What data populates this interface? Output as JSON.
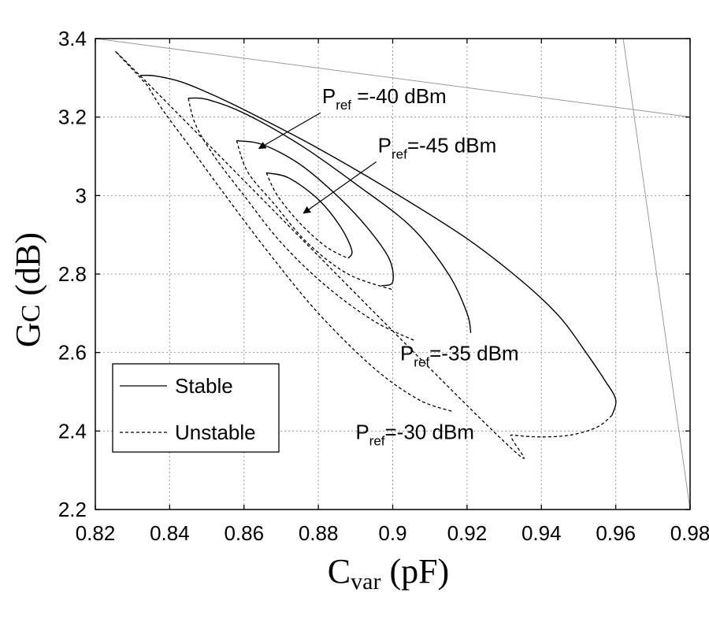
{
  "chart_data": {
    "type": "line",
    "xlabel": {
      "main": "C",
      "sub": "var",
      "units": " (pF)"
    },
    "ylabel": {
      "main": "G",
      "sub": "C",
      "units": " (dB)"
    },
    "xlim": [
      0.82,
      0.98
    ],
    "ylim": [
      2.2,
      3.4
    ],
    "xticks": [
      "0.82",
      "0.84",
      "0.86",
      "0.88",
      "0.9",
      "0.92",
      "0.94",
      "0.96",
      "0.98"
    ],
    "yticks": [
      "2.2",
      "2.4",
      "2.6",
      "2.8",
      "3",
      "3.2",
      "3.4"
    ],
    "grid": true,
    "legend": {
      "position": "bottom-left",
      "entries": [
        {
          "label": "Stable",
          "style": "solid"
        },
        {
          "label": "Unstable",
          "style": "dashed"
        }
      ]
    },
    "series": [
      {
        "name": "Pref=-30 dBm",
        "stable": [
          [
            0.832,
            3.306
          ],
          [
            0.836,
            3.305
          ],
          [
            0.843,
            3.29
          ],
          [
            0.852,
            3.255
          ],
          [
            0.865,
            3.195
          ],
          [
            0.88,
            3.12
          ],
          [
            0.9,
            3.01
          ],
          [
            0.92,
            2.89
          ],
          [
            0.935,
            2.78
          ],
          [
            0.945,
            2.69
          ],
          [
            0.952,
            2.6
          ],
          [
            0.957,
            2.53
          ],
          [
            0.96,
            2.48
          ],
          [
            0.959,
            2.44
          ]
        ],
        "unstable": [
          [
            0.959,
            2.44
          ],
          [
            0.955,
            2.41
          ],
          [
            0.948,
            2.39
          ],
          [
            0.94,
            2.385
          ],
          [
            0.932,
            2.39
          ],
          [
            0.927,
            2.4
          ],
          [
            0.832,
            3.306
          ],
          [
            0.834,
            3.28
          ],
          [
            0.838,
            3.22
          ],
          [
            0.845,
            3.13
          ],
          [
            0.855,
            3.0
          ],
          [
            0.867,
            2.85
          ],
          [
            0.88,
            2.7
          ],
          [
            0.895,
            2.56
          ],
          [
            0.907,
            2.48
          ],
          [
            0.916,
            2.45
          ]
        ]
      },
      {
        "name": "Pref=-35 dBm",
        "stable": [
          [
            0.845,
            3.248
          ],
          [
            0.85,
            3.245
          ],
          [
            0.86,
            3.21
          ],
          [
            0.875,
            3.13
          ],
          [
            0.89,
            3.03
          ],
          [
            0.905,
            2.92
          ],
          [
            0.915,
            2.8
          ],
          [
            0.92,
            2.7
          ],
          [
            0.921,
            2.65
          ]
        ],
        "unstable": [
          [
            0.845,
            3.248
          ],
          [
            0.847,
            3.18
          ],
          [
            0.852,
            3.1
          ],
          [
            0.86,
            3.0
          ],
          [
            0.87,
            2.88
          ],
          [
            0.882,
            2.77
          ],
          [
            0.895,
            2.68
          ],
          [
            0.906,
            2.63
          ]
        ]
      },
      {
        "name": "Pref=-40 dBm",
        "stable": [
          [
            0.858,
            3.14
          ],
          [
            0.865,
            3.13
          ],
          [
            0.875,
            3.08
          ],
          [
            0.885,
            3.0
          ],
          [
            0.893,
            2.92
          ],
          [
            0.899,
            2.84
          ],
          [
            0.9,
            2.78
          ],
          [
            0.897,
            2.77
          ]
        ],
        "unstable": [
          [
            0.858,
            3.14
          ],
          [
            0.861,
            3.06
          ],
          [
            0.868,
            2.98
          ],
          [
            0.877,
            2.88
          ],
          [
            0.888,
            2.8
          ],
          [
            0.9,
            2.76
          ]
        ]
      },
      {
        "name": "Pref=-45 dBm",
        "stable": [
          [
            0.866,
            3.058
          ],
          [
            0.872,
            3.045
          ],
          [
            0.88,
            2.99
          ],
          [
            0.886,
            2.92
          ],
          [
            0.889,
            2.86
          ],
          [
            0.888,
            2.84
          ]
        ],
        "unstable": [
          [
            0.866,
            3.058
          ],
          [
            0.869,
            3.0
          ],
          [
            0.875,
            2.93
          ],
          [
            0.882,
            2.87
          ],
          [
            0.888,
            2.84
          ]
        ]
      }
    ],
    "annotations": [
      {
        "main": "P",
        "sub": "ref",
        "text": " =-40 dBm",
        "anchor": [
          0.881,
          3.235
        ],
        "arrow_to": [
          0.864,
          3.12
        ]
      },
      {
        "main": "P",
        "sub": "ref",
        "text": "=-45 dBm",
        "anchor": [
          0.896,
          3.11
        ],
        "arrow_to": [
          0.876,
          2.955
        ]
      },
      {
        "main": "P",
        "sub": "ref",
        "text": "=-35 dBm",
        "anchor": [
          0.902,
          2.58
        ]
      },
      {
        "main": "P",
        "sub": "ref",
        "text": "=-30 dBm",
        "anchor": [
          0.89,
          2.38
        ]
      }
    ],
    "background_lines": [
      [
        [
          0.82,
          3.4
        ],
        [
          0.98,
          3.2
        ]
      ],
      [
        [
          0.962,
          3.4
        ],
        [
          0.98,
          2.2
        ]
      ]
    ]
  }
}
